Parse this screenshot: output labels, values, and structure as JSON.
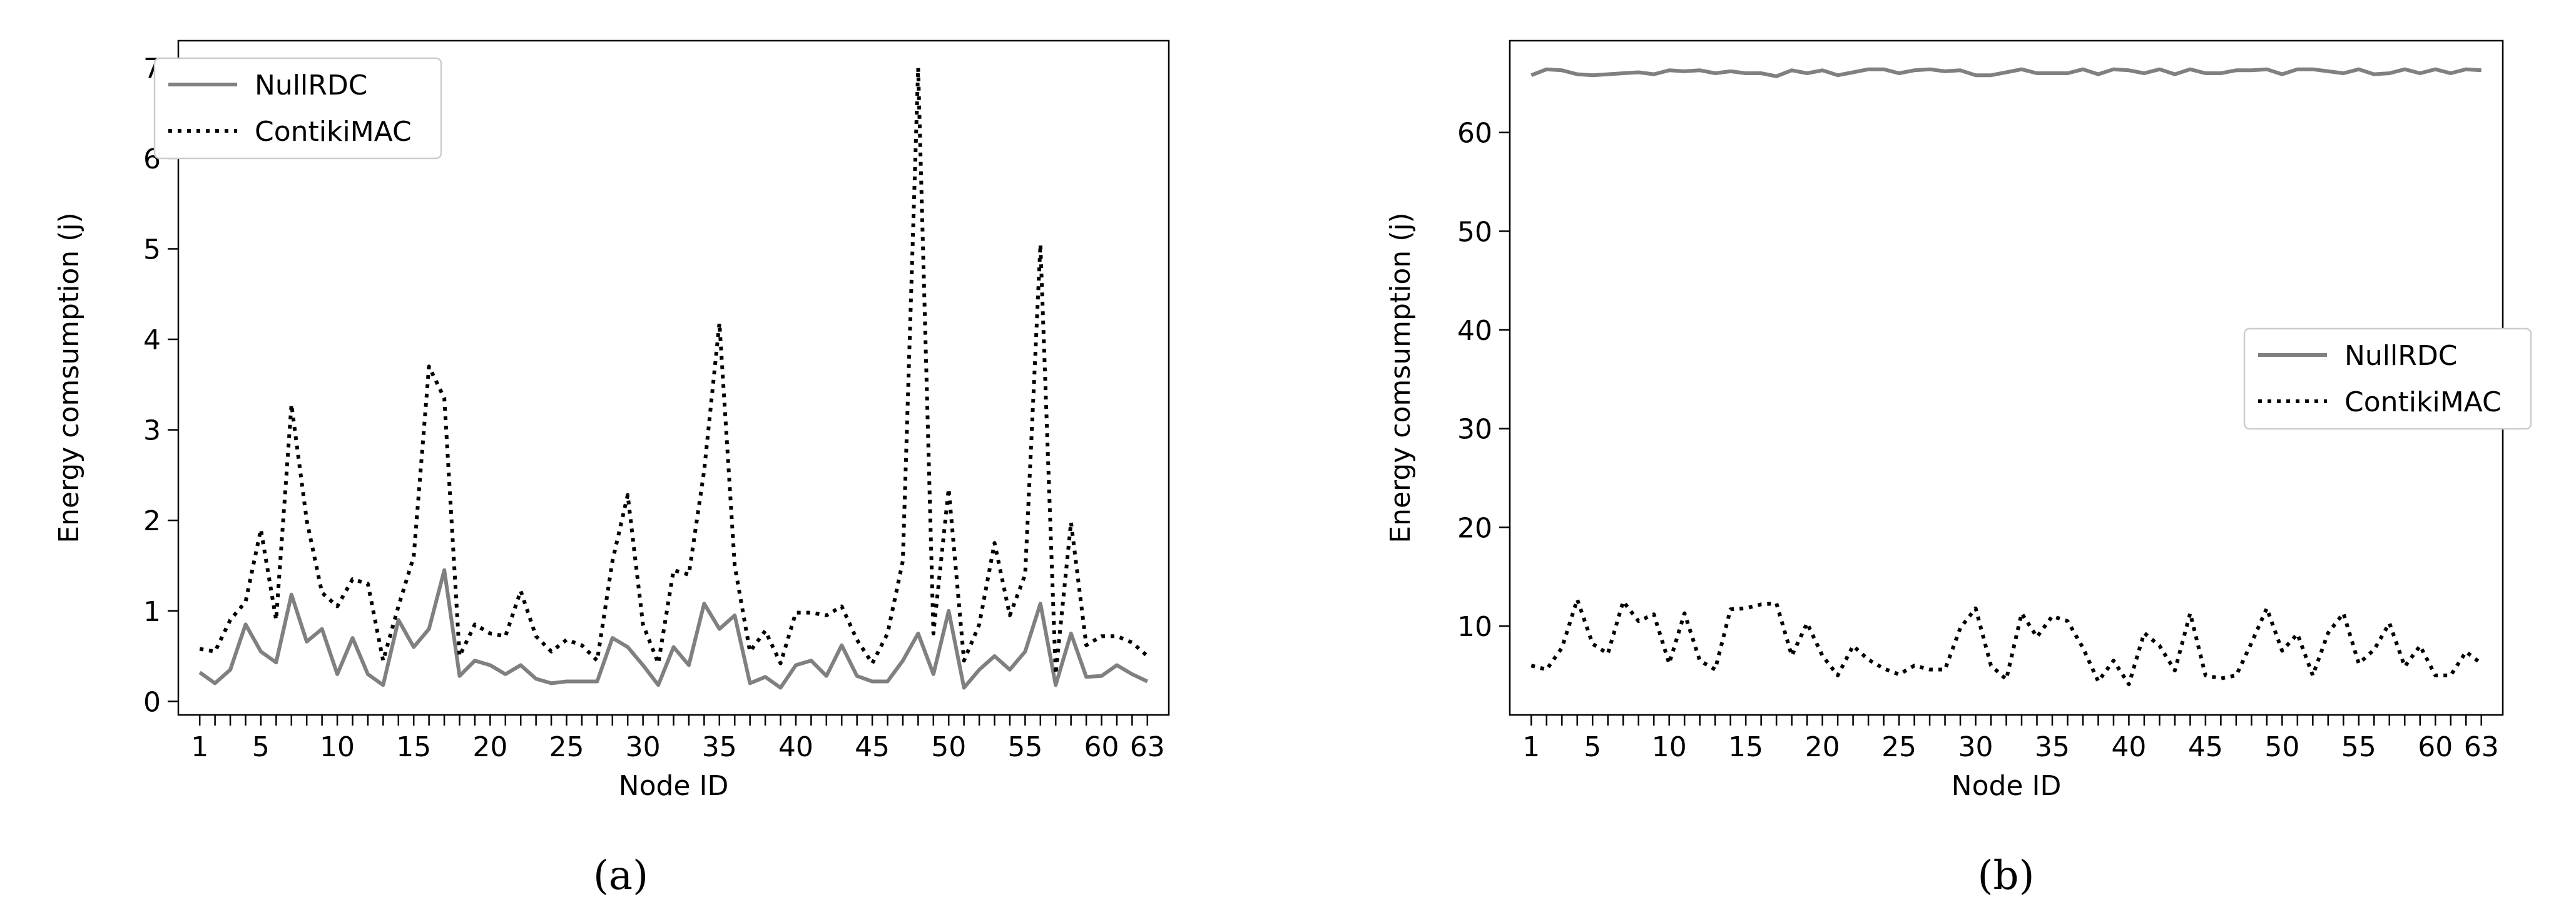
{
  "panels": [
    {
      "caption": "(a)",
      "chart_data": {
        "type": "line",
        "xlabel": "Node ID",
        "ylabel": "Energy comsumption (j)",
        "x_ticks": [
          1,
          5,
          10,
          15,
          20,
          25,
          30,
          35,
          40,
          45,
          50,
          55,
          60,
          63
        ],
        "y_ticks": [
          0,
          1,
          2,
          3,
          4,
          5,
          6,
          7
        ],
        "xlim": [
          -0.4,
          64.4
        ],
        "ylim": [
          -0.15,
          7.3
        ],
        "grid": false,
        "legend_position": "upper-left",
        "x": [
          1,
          2,
          3,
          4,
          5,
          6,
          7,
          8,
          9,
          10,
          11,
          12,
          13,
          14,
          15,
          16,
          17,
          18,
          19,
          20,
          21,
          22,
          23,
          24,
          25,
          26,
          27,
          28,
          29,
          30,
          31,
          32,
          33,
          34,
          35,
          36,
          37,
          38,
          39,
          40,
          41,
          42,
          43,
          44,
          45,
          46,
          47,
          48,
          49,
          50,
          51,
          52,
          53,
          54,
          55,
          56,
          57,
          58,
          59,
          60,
          61,
          62,
          63
        ],
        "series": [
          {
            "name": "NullRDC",
            "style": "solid",
            "color": "#808080",
            "values": [
              0.32,
              0.2,
              0.35,
              0.85,
              0.55,
              0.43,
              1.18,
              0.66,
              0.8,
              0.3,
              0.7,
              0.3,
              0.18,
              0.9,
              0.6,
              0.8,
              1.45,
              0.28,
              0.45,
              0.4,
              0.3,
              0.4,
              0.25,
              0.2,
              0.22,
              0.22,
              0.22,
              0.7,
              0.6,
              0.4,
              0.18,
              0.6,
              0.4,
              1.08,
              0.8,
              0.95,
              0.2,
              0.27,
              0.15,
              0.4,
              0.45,
              0.28,
              0.62,
              0.28,
              0.22,
              0.22,
              0.45,
              0.75,
              0.3,
              1.0,
              0.15,
              0.35,
              0.5,
              0.35,
              0.55,
              1.08,
              0.18,
              0.75,
              0.27,
              0.28,
              0.4,
              0.3,
              0.22
            ]
          },
          {
            "name": "ContikiMAC",
            "style": "dotted",
            "color": "#000000",
            "values": [
              0.58,
              0.55,
              0.9,
              1.1,
              1.9,
              0.9,
              3.28,
              2.0,
              1.2,
              1.05,
              1.35,
              1.3,
              0.45,
              1.05,
              1.6,
              3.7,
              3.35,
              0.5,
              0.85,
              0.75,
              0.72,
              1.22,
              0.72,
              0.55,
              0.68,
              0.62,
              0.45,
              1.55,
              2.28,
              0.85,
              0.42,
              1.45,
              1.4,
              2.55,
              4.18,
              1.5,
              0.55,
              0.78,
              0.42,
              0.98,
              0.98,
              0.95,
              1.05,
              0.68,
              0.42,
              0.75,
              1.55,
              7.0,
              0.75,
              2.35,
              0.45,
              0.85,
              1.75,
              0.95,
              1.4,
              5.05,
              0.3,
              1.98,
              0.62,
              0.72,
              0.72,
              0.65,
              0.5
            ]
          }
        ]
      }
    },
    {
      "caption": "(b)",
      "chart_data": {
        "type": "line",
        "xlabel": "Node ID",
        "ylabel": "Energy comsumption (j)",
        "x_ticks": [
          1,
          5,
          10,
          15,
          20,
          25,
          30,
          35,
          40,
          45,
          50,
          55,
          60,
          63
        ],
        "y_ticks": [
          10,
          20,
          30,
          40,
          50,
          60
        ],
        "xlim": [
          -0.4,
          64.4
        ],
        "ylim": [
          1.0,
          69.3
        ],
        "grid": false,
        "legend_position": "center-right",
        "x": [
          1,
          2,
          3,
          4,
          5,
          6,
          7,
          8,
          9,
          10,
          11,
          12,
          13,
          14,
          15,
          16,
          17,
          18,
          19,
          20,
          21,
          22,
          23,
          24,
          25,
          26,
          27,
          28,
          29,
          30,
          31,
          32,
          33,
          34,
          35,
          36,
          37,
          38,
          39,
          40,
          41,
          42,
          43,
          44,
          45,
          46,
          47,
          48,
          49,
          50,
          51,
          52,
          53,
          54,
          55,
          56,
          57,
          58,
          59,
          60,
          61,
          62,
          63
        ],
        "series": [
          {
            "name": "NullRDC",
            "style": "solid",
            "color": "#808080",
            "values": [
              65.8,
              66.4,
              66.3,
              65.9,
              65.8,
              65.9,
              66.0,
              66.1,
              65.9,
              66.3,
              66.2,
              66.3,
              66.0,
              66.2,
              66.0,
              66.0,
              65.7,
              66.3,
              66.0,
              66.3,
              65.8,
              66.1,
              66.4,
              66.4,
              66.0,
              66.3,
              66.4,
              66.2,
              66.3,
              65.8,
              65.8,
              66.1,
              66.4,
              66.0,
              66.0,
              66.0,
              66.4,
              65.9,
              66.4,
              66.3,
              66.0,
              66.4,
              65.9,
              66.4,
              66.0,
              66.0,
              66.3,
              66.3,
              66.4,
              65.9,
              66.4,
              66.4,
              66.2,
              66.0,
              66.4,
              65.9,
              66.0,
              66.4,
              66.0,
              66.4,
              66.0,
              66.4,
              66.3
            ]
          },
          {
            "name": "ContikiMAC",
            "style": "dotted",
            "color": "#000000",
            "values": [
              6.0,
              5.6,
              7.8,
              12.7,
              8.2,
              7.2,
              12.5,
              10.5,
              11.2,
              6.2,
              11.3,
              6.5,
              5.6,
              11.7,
              11.8,
              12.2,
              12.3,
              7.0,
              10.3,
              7.0,
              5.0,
              8.0,
              6.6,
              5.7,
              5.1,
              6.0,
              5.6,
              5.6,
              9.8,
              11.8,
              6.0,
              4.6,
              11.3,
              8.9,
              11.0,
              10.5,
              7.8,
              4.4,
              6.5,
              4.1,
              9.3,
              8.0,
              5.5,
              11.3,
              5.0,
              4.7,
              5.0,
              8.3,
              11.8,
              7.5,
              9.2,
              5.0,
              9.3,
              11.3,
              6.2,
              7.6,
              10.3,
              5.9,
              8.0,
              5.0,
              5.0,
              7.4,
              6.2
            ]
          }
        ]
      }
    }
  ]
}
